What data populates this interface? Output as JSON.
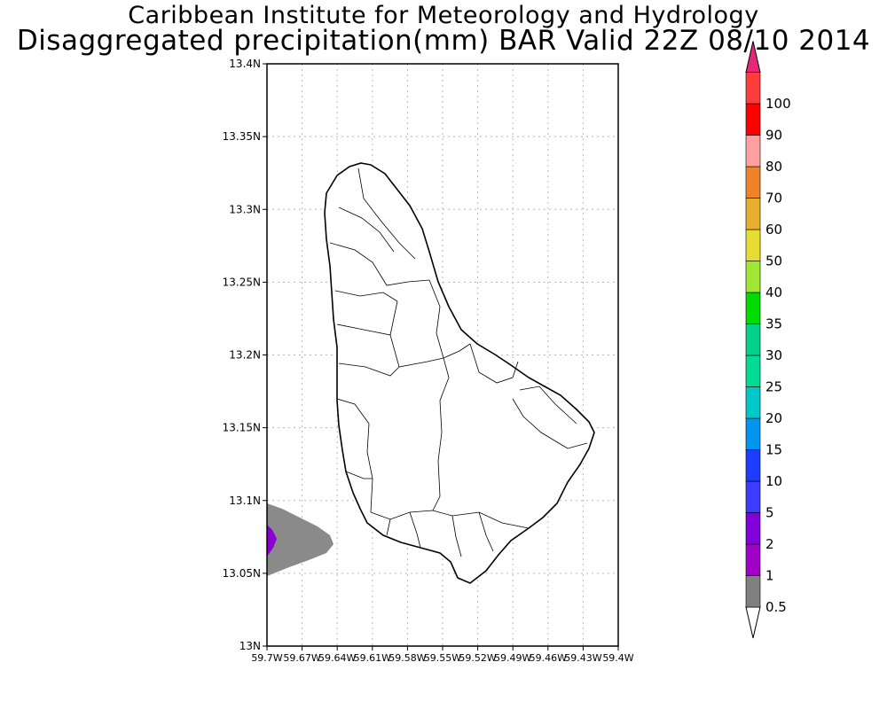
{
  "header": {
    "title1": "Caribbean Institute for Meteorology and Hydrology",
    "title2": "Disaggregated precipitation(mm) BAR Valid 22Z 08/10 2014"
  },
  "map": {
    "region": "Barbados",
    "lat_range": [
      13.0,
      13.4
    ],
    "lon_range": [
      -59.7,
      -59.4
    ],
    "grid": true,
    "y_ticks": [
      {
        "value": 13.0,
        "label": "13N"
      },
      {
        "value": 13.05,
        "label": "13.05N"
      },
      {
        "value": 13.1,
        "label": "13.1N"
      },
      {
        "value": 13.15,
        "label": "13.15N"
      },
      {
        "value": 13.2,
        "label": "13.2N"
      },
      {
        "value": 13.25,
        "label": "13.25N"
      },
      {
        "value": 13.3,
        "label": "13.3N"
      },
      {
        "value": 13.35,
        "label": "13.35N"
      },
      {
        "value": 13.4,
        "label": "13.4N"
      }
    ],
    "x_ticks": [
      {
        "value": -59.7,
        "label": "59.7W"
      },
      {
        "value": -59.67,
        "label": "59.67W"
      },
      {
        "value": -59.64,
        "label": "59.64W"
      },
      {
        "value": -59.61,
        "label": "59.61W"
      },
      {
        "value": -59.58,
        "label": "59.58W"
      },
      {
        "value": -59.55,
        "label": "59.55W"
      },
      {
        "value": -59.52,
        "label": "59.52W"
      },
      {
        "value": -59.49,
        "label": "59.49W"
      },
      {
        "value": -59.46,
        "label": "59.46W"
      },
      {
        "value": -59.43,
        "label": "59.43W"
      },
      {
        "value": -59.4,
        "label": "59.4W"
      }
    ],
    "precip_area_color": "#8a8a8a",
    "precip_core_color": "#8a00d0",
    "land_outline_color": "#000000"
  },
  "colorbar": {
    "labels": [
      "0.5",
      "1",
      "2",
      "5",
      "10",
      "15",
      "20",
      "25",
      "30",
      "35",
      "40",
      "50",
      "60",
      "70",
      "80",
      "90",
      "100"
    ],
    "colors": [
      "#808080",
      "#a000c8",
      "#8200dc",
      "#3c3cff",
      "#1e3cff",
      "#0096f0",
      "#00c8c8",
      "#00dc96",
      "#00d28c",
      "#00dc00",
      "#a0e632",
      "#e6dc32",
      "#e6af2d",
      "#f08228",
      "#ffa0a0",
      "#ff0000",
      "#ff3c3c"
    ],
    "top_color": "#e6287a",
    "bottom_color": "#ffffff"
  }
}
